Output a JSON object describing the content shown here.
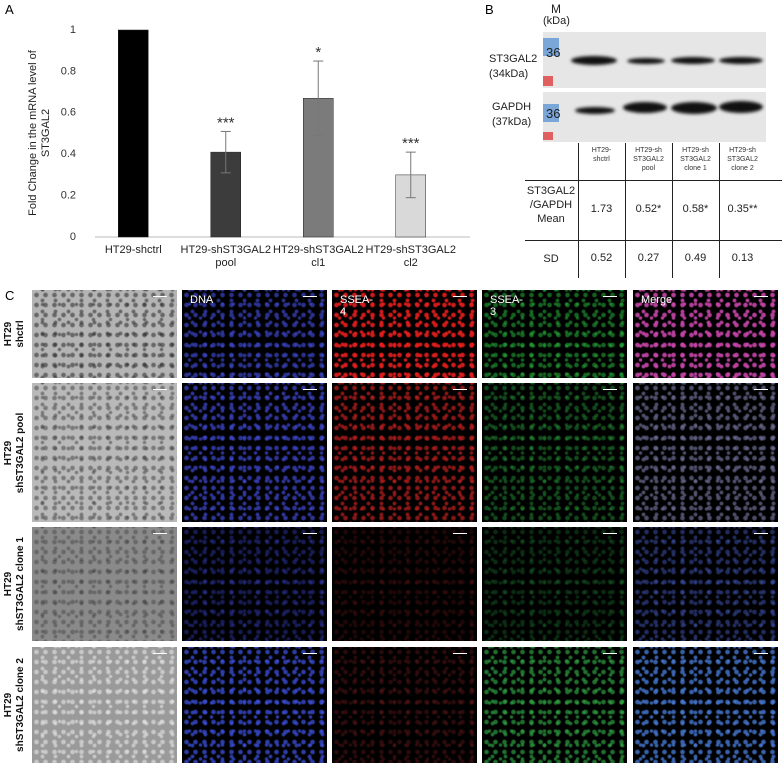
{
  "chart_data": {
    "type": "bar",
    "panel_label": "A",
    "ylabel": "Fold Change in the mRNA level of ST3GAL2",
    "categories": [
      "HT29-shctrl",
      "HT29-shST3GAL2\npool",
      "HT29-shST3GAL2\ncl1",
      "HT29-shST3GAL2\ncl2"
    ],
    "values": [
      1,
      0.41,
      0.67,
      0.3
    ],
    "errors": [
      null,
      0.1,
      0.18,
      0.11
    ],
    "annotations": [
      null,
      "***",
      "*",
      "***"
    ],
    "colors": [
      "#000000",
      "#3c3c3c",
      "#7b7b7b",
      "#d9d9d9"
    ],
    "ylim": [
      0,
      1
    ],
    "yticks": [
      0,
      0.2,
      0.4,
      0.6,
      0.8,
      1
    ],
    "grid": false
  },
  "blot": {
    "panel_label": "B",
    "marker_title": "M",
    "marker_unit": "(kDa)",
    "marker_size": "36",
    "rows": [
      {
        "name": "ST3GAL2",
        "size": "(34kDa)"
      },
      {
        "name": "GAPDH",
        "size": "(37kDa)"
      }
    ]
  },
  "table": {
    "columns": [
      "HT29-\nshctrl",
      "HT29-sh\nST3GAL2\npool",
      "HT29-sh\nST3GAL2\nclone 1",
      "HT29-sh\nST3GAL2\nclone 2"
    ],
    "rows": [
      [
        "ST3GAL2\n/GAPDH\nMean",
        "1.73",
        "0.52*",
        "0.58*",
        "0.35**"
      ],
      [
        "SD",
        "0.52",
        "0.27",
        "0.49",
        "0.13"
      ]
    ]
  },
  "microscopy": {
    "panel_label": "C",
    "columns": [
      "DNA",
      "SSEA-4",
      "SSEA-3",
      "Merge"
    ],
    "rows": [
      "HT29\nshctrl",
      "HT29\nshST3GAL2 pool",
      "HT29\nshST3GAL2 clone 1",
      "HT29\nshST3GAL2 clone 2"
    ]
  }
}
